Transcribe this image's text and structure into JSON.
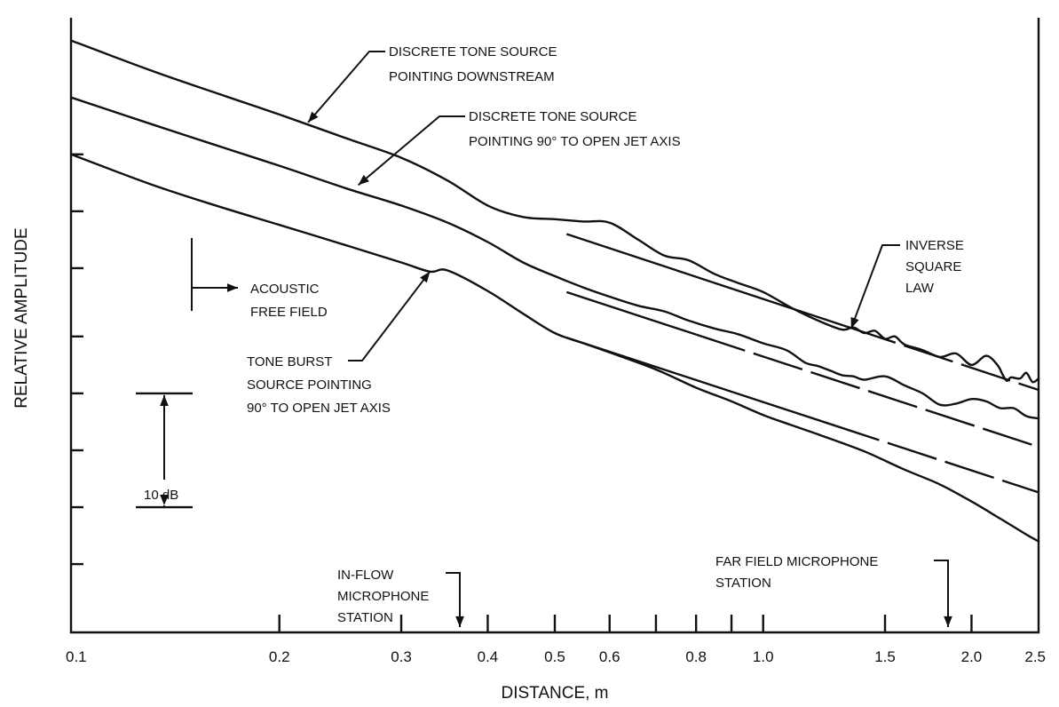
{
  "chart_data": {
    "type": "line",
    "title": "",
    "xlabel": "DISTANCE, m",
    "ylabel": "RELATIVE AMPLITUDE",
    "x_scale": "log",
    "xlim": [
      0.1,
      2.5
    ],
    "ylim": [
      -52,
      2
    ],
    "x_ticks": [
      0.1,
      0.2,
      0.3,
      0.4,
      0.5,
      0.6,
      0.8,
      1.0,
      1.5,
      2.0,
      2.5
    ],
    "x_tick_labels": [
      "0.1",
      "0.2",
      "0.3",
      "0.4",
      "0.5",
      "0.6",
      "0.8",
      "1.0",
      "1.5",
      "2.0",
      "2.5"
    ],
    "x_minor_ticks": [
      0.7,
      0.9
    ],
    "y_ticks": [
      -10,
      -15,
      -20,
      -26,
      -31,
      -36,
      -41,
      -46
    ],
    "scale_bar": {
      "label": "10 dB",
      "from": -41,
      "to": -31
    },
    "series": [
      {
        "name": "DISCRETE TONE SOURCE POINTING DOWNSTREAM",
        "x": [
          0.1,
          0.13,
          0.16,
          0.2,
          0.25,
          0.3,
          0.35,
          0.4,
          0.45,
          0.5,
          0.55,
          0.6,
          0.66,
          0.72,
          0.78,
          0.85,
          0.92,
          1.0,
          1.1,
          1.2,
          1.3,
          1.35,
          1.4,
          1.45,
          1.5,
          1.55,
          1.6,
          1.7,
          1.8,
          1.9,
          2.0,
          2.1,
          2.18,
          2.22,
          2.25,
          2.28,
          2.35,
          2.4,
          2.45,
          2.5
        ],
        "y": [
          0,
          -2.6,
          -4.5,
          -6.5,
          -8.6,
          -10.3,
          -12.3,
          -14.5,
          -15.5,
          -15.7,
          -15.9,
          -16,
          -17.5,
          -18.9,
          -19.3,
          -20.5,
          -21.3,
          -22.1,
          -23.5,
          -24.6,
          -25.4,
          -25.2,
          -25.7,
          -25.5,
          -26.2,
          -26,
          -26.7,
          -27.2,
          -27.8,
          -27.5,
          -28.5,
          -27.7,
          -28.5,
          -29.4,
          -29.9,
          -29.6,
          -29.7,
          -29.2,
          -30,
          -29.7
        ]
      },
      {
        "name": "DISCRETE TONE SOURCE POINTING 90° TO OPEN JET AXIS",
        "x": [
          0.1,
          0.13,
          0.16,
          0.2,
          0.25,
          0.3,
          0.35,
          0.4,
          0.45,
          0.5,
          0.55,
          0.6,
          0.66,
          0.72,
          0.78,
          0.85,
          0.92,
          1.0,
          1.08,
          1.15,
          1.2,
          1.25,
          1.3,
          1.35,
          1.4,
          1.5,
          1.6,
          1.7,
          1.8,
          1.9,
          2.0,
          2.1,
          2.2,
          2.3,
          2.4,
          2.5
        ],
        "y": [
          -5,
          -7.3,
          -9.1,
          -11,
          -13,
          -14.5,
          -16,
          -17.7,
          -19.5,
          -20.7,
          -21.7,
          -22.5,
          -23.3,
          -23.8,
          -24.6,
          -25.3,
          -25.8,
          -26.6,
          -27.2,
          -28.3,
          -28.6,
          -29,
          -29.4,
          -29.5,
          -29.8,
          -29.5,
          -30.3,
          -31,
          -32,
          -31.9,
          -31.5,
          -31.7,
          -32.3,
          -32.3,
          -33,
          -33.2
        ]
      },
      {
        "name": "TONE BURST SOURCE POINTING 90° TO OPEN JET AXIS",
        "x": [
          0.1,
          0.13,
          0.16,
          0.2,
          0.25,
          0.3,
          0.33,
          0.35,
          0.4,
          0.45,
          0.5,
          0.55,
          0.6,
          0.7,
          0.8,
          0.9,
          1.0,
          1.1,
          1.2,
          1.4,
          1.6,
          1.8,
          2.0,
          2.2,
          2.4,
          2.5
        ],
        "y": [
          -10,
          -12.6,
          -14.4,
          -16.2,
          -18,
          -19.5,
          -20.3,
          -20.2,
          -22,
          -24,
          -25.7,
          -26.6,
          -27.4,
          -28.9,
          -30.5,
          -31.7,
          -32.9,
          -33.8,
          -34.6,
          -36.1,
          -37.7,
          -39,
          -40.5,
          -42,
          -43.4,
          -44
        ]
      }
    ],
    "reference_lines": {
      "name": "INVERSE SQUARE LAW",
      "slope_db_per_decade": -20,
      "lines": [
        {
          "x": [
            0.52,
            2.5
          ],
          "y": [
            -17,
            -30.7
          ],
          "segments": [
            {
              "x": [
                0.52,
                1.32
              ],
              "style": "solid"
            },
            {
              "x": [
                1.32,
                2.5
              ],
              "style": "dashed"
            }
          ]
        },
        {
          "x": [
            0.52,
            2.5
          ],
          "y": [
            -22.1,
            -35.7
          ],
          "segments": [
            {
              "x": [
                0.52,
                0.8
              ],
              "style": "solid"
            },
            {
              "x": [
                0.8,
                2.5
              ],
              "style": "dashed"
            }
          ]
        },
        {
          "x": [
            0.52,
            2.5
          ],
          "y": [
            -26.1,
            -39.7
          ],
          "segments": [
            {
              "x": [
                0.52,
                1.25
              ],
              "style": "solid"
            },
            {
              "x": [
                1.25,
                2.5
              ],
              "style": "dashed"
            }
          ]
        }
      ]
    },
    "annotations": [
      {
        "id": "downstream",
        "lines": [
          "DISCRETE TONE SOURCE",
          "POINTING DOWNSTREAM"
        ],
        "arrow_to": [
          0.22,
          -7.2
        ]
      },
      {
        "id": "ninety",
        "lines": [
          "DISCRETE TONE SOURCE",
          "POINTING 90° TO OPEN JET AXIS"
        ],
        "arrow_to": [
          0.26,
          -12.7
        ]
      },
      {
        "id": "burst",
        "lines": [
          "TONE BURST",
          "SOURCE POINTING",
          "90° TO OPEN JET AXIS"
        ],
        "arrow_to": [
          0.33,
          -20.3
        ]
      },
      {
        "id": "free-field",
        "lines": [
          "ACOUSTIC",
          "FREE FIELD"
        ],
        "arrow_to": [
          0.147,
          -20.3
        ]
      },
      {
        "id": "inverse",
        "lines": [
          "INVERSE",
          "SQUARE",
          "LAW"
        ],
        "arrow_to": [
          1.34,
          -25.3
        ]
      },
      {
        "id": "in-flow",
        "lines": [
          "IN-FLOW",
          "MICROPHONE",
          "STATION"
        ],
        "arrow_to": [
          0.37,
          -48.5
        ]
      },
      {
        "id": "far-field",
        "lines": [
          "FAR FIELD MICROPHONE",
          "STATION"
        ],
        "arrow_to": [
          1.87,
          -48.5
        ]
      }
    ]
  }
}
